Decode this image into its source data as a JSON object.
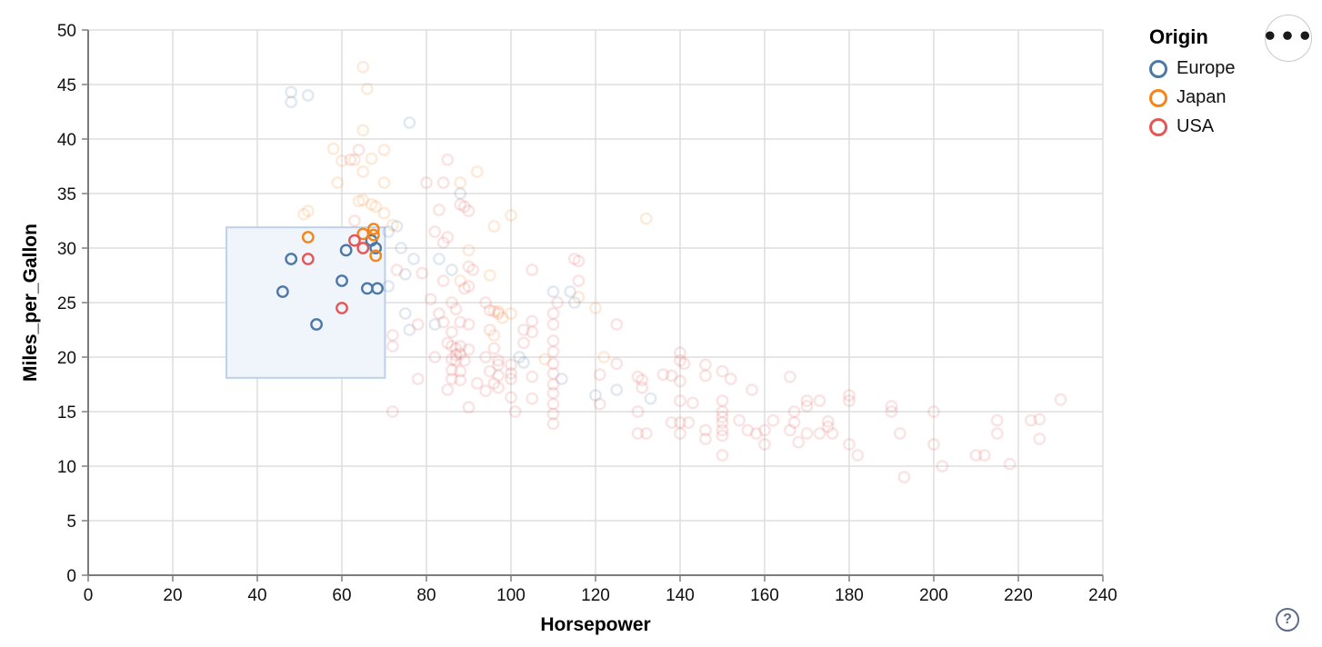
{
  "controls": {
    "menu_icon": "•••",
    "help_icon": "?"
  },
  "chart_data": {
    "type": "scatter",
    "title": "",
    "xlabel": "Horsepower",
    "ylabel": "Miles_per_Gallon",
    "x_domain": [
      0,
      240
    ],
    "y_domain": [
      0,
      50
    ],
    "x_ticks": [
      0,
      20,
      40,
      60,
      80,
      100,
      120,
      140,
      160,
      180,
      200,
      220,
      240
    ],
    "y_ticks": [
      0,
      5,
      10,
      15,
      20,
      25,
      30,
      35,
      40,
      45,
      50
    ],
    "grid": true,
    "legend_position": "top-right",
    "legend": {
      "title": "Origin",
      "entries": [
        {
          "label": "Europe",
          "color": "#4c78a8"
        },
        {
          "label": "Japan",
          "color": "#f58518"
        },
        {
          "label": "USA",
          "color": "#e45756"
        }
      ]
    },
    "brush": {
      "x": [
        32.7,
        70.2
      ],
      "y": [
        18.1,
        31.9
      ],
      "fill": "#f0f5fc",
      "stroke": "#bcd0ec"
    },
    "unselected_opacity": 0.17,
    "series": [
      {
        "name": "Europe",
        "color": "#4c78a8",
        "points": [
          [
            46,
            26
          ],
          [
            48,
            29
          ],
          [
            54,
            23
          ],
          [
            60,
            27
          ],
          [
            61,
            29.8
          ],
          [
            67,
            30.7
          ],
          [
            68,
            30
          ],
          [
            66,
            26.3
          ],
          [
            68.4,
            26.3
          ],
          [
            48,
            44.3
          ],
          [
            52,
            44
          ],
          [
            48,
            43.4
          ],
          [
            76,
            41.5
          ],
          [
            88,
            35
          ],
          [
            83,
            29
          ],
          [
            86,
            28
          ],
          [
            71,
            31.5
          ],
          [
            73,
            32
          ],
          [
            74,
            30
          ],
          [
            77,
            29
          ],
          [
            75,
            27.6
          ],
          [
            71,
            26.5
          ],
          [
            75,
            24
          ],
          [
            76,
            22.5
          ],
          [
            82,
            23
          ],
          [
            102,
            20
          ],
          [
            103,
            19.5
          ],
          [
            110,
            26
          ],
          [
            112,
            18
          ],
          [
            114,
            26
          ],
          [
            115,
            25
          ],
          [
            120,
            16.5
          ],
          [
            125,
            17
          ],
          [
            133,
            16.2
          ]
        ]
      },
      {
        "name": "Japan",
        "color": "#f58518",
        "points": [
          [
            52,
            31
          ],
          [
            65,
            31.3
          ],
          [
            67.5,
            31.75
          ],
          [
            67.5,
            31.2
          ],
          [
            68,
            29.3
          ],
          [
            65,
            46.6
          ],
          [
            66,
            44.6
          ],
          [
            65,
            40.8
          ],
          [
            58,
            39.1
          ],
          [
            59,
            36
          ],
          [
            60,
            38
          ],
          [
            63,
            38.1
          ],
          [
            67,
            38.2
          ],
          [
            70,
            39
          ],
          [
            65,
            37
          ],
          [
            70,
            36
          ],
          [
            92,
            37
          ],
          [
            88,
            36
          ],
          [
            100,
            33
          ],
          [
            96,
            32
          ],
          [
            90,
            29.8
          ],
          [
            132,
            32.7
          ],
          [
            52,
            33.4
          ],
          [
            51,
            33.1
          ],
          [
            64,
            34.3
          ],
          [
            65,
            34.4
          ],
          [
            67,
            34
          ],
          [
            68,
            33.8
          ],
          [
            70,
            33.2
          ],
          [
            72,
            32.1
          ],
          [
            96,
            24.2
          ],
          [
            97,
            24.2
          ],
          [
            98,
            23.6
          ],
          [
            96,
            22
          ],
          [
            88,
            27
          ],
          [
            95,
            27.5
          ],
          [
            100,
            24
          ],
          [
            108,
            19.8
          ],
          [
            116,
            25.5
          ],
          [
            120,
            24.5
          ],
          [
            122,
            20
          ]
        ]
      },
      {
        "name": "USA",
        "color": "#e45756",
        "points": [
          [
            52,
            29
          ],
          [
            60,
            24.5
          ],
          [
            63,
            30.7
          ],
          [
            65,
            30
          ],
          [
            64,
            39
          ],
          [
            62,
            38.1
          ],
          [
            85,
            38.1
          ],
          [
            84,
            36
          ],
          [
            80,
            36
          ],
          [
            83,
            33.5
          ],
          [
            88,
            34
          ],
          [
            89,
            33.8
          ],
          [
            90,
            33.4
          ],
          [
            63,
            32.5
          ],
          [
            82,
            31.5
          ],
          [
            85,
            31
          ],
          [
            84,
            30.5
          ],
          [
            73,
            28
          ],
          [
            79,
            27.7
          ],
          [
            90,
            28.3
          ],
          [
            91,
            28
          ],
          [
            84,
            27
          ],
          [
            81,
            25.3
          ],
          [
            86,
            25
          ],
          [
            87,
            24.4
          ],
          [
            89,
            26.3
          ],
          [
            90,
            26.5
          ],
          [
            88,
            23.2
          ],
          [
            90,
            23
          ],
          [
            83,
            24
          ],
          [
            84,
            23.2
          ],
          [
            78,
            23
          ],
          [
            86,
            22.3
          ],
          [
            85,
            21.3
          ],
          [
            72,
            22
          ],
          [
            72,
            21
          ],
          [
            86,
            21
          ],
          [
            87,
            20.8
          ],
          [
            88,
            21
          ],
          [
            90,
            20.7
          ],
          [
            88,
            20.3
          ],
          [
            87,
            20.2
          ],
          [
            86,
            19.8
          ],
          [
            87,
            19.7
          ],
          [
            89,
            19.7
          ],
          [
            86,
            18.8
          ],
          [
            88,
            18.7
          ],
          [
            86,
            18
          ],
          [
            88,
            17.9
          ],
          [
            85,
            17
          ],
          [
            78,
            18
          ],
          [
            82,
            20
          ],
          [
            92,
            17.6
          ],
          [
            90,
            15.4
          ],
          [
            72,
            15
          ],
          [
            94,
            25
          ],
          [
            95,
            24.3
          ],
          [
            97,
            24
          ],
          [
            95,
            22.5
          ],
          [
            96,
            20.8
          ],
          [
            94,
            20
          ],
          [
            97,
            19.7
          ],
          [
            95,
            18.7
          ],
          [
            96,
            17.6
          ],
          [
            94,
            16.9
          ],
          [
            97,
            19.3
          ],
          [
            97,
            18.3
          ],
          [
            97,
            17.2
          ],
          [
            100,
            19.3
          ],
          [
            100,
            18.5
          ],
          [
            100,
            18
          ],
          [
            100,
            16.3
          ],
          [
            101,
            15
          ],
          [
            103,
            22.5
          ],
          [
            103,
            21.3
          ],
          [
            105,
            28
          ],
          [
            105,
            23.3
          ],
          [
            105,
            22.3
          ],
          [
            105,
            18.2
          ],
          [
            105,
            16.2
          ],
          [
            110,
            24
          ],
          [
            110,
            23
          ],
          [
            110,
            21.5
          ],
          [
            110,
            20.5
          ],
          [
            110,
            19.4
          ],
          [
            110,
            18.5
          ],
          [
            110,
            17.5
          ],
          [
            110,
            16.7
          ],
          [
            110,
            15.7
          ],
          [
            110,
            14.8
          ],
          [
            110,
            13.9
          ],
          [
            111,
            25
          ],
          [
            115,
            29
          ],
          [
            116,
            28.8
          ],
          [
            116,
            27
          ],
          [
            125,
            23
          ],
          [
            125,
            19.4
          ],
          [
            121,
            18.4
          ],
          [
            121,
            15.7
          ],
          [
            130,
            18.2
          ],
          [
            131,
            17.9
          ],
          [
            131,
            17.2
          ],
          [
            136,
            18.4
          ],
          [
            138,
            18.3
          ],
          [
            140,
            20.4
          ],
          [
            140,
            19.7
          ],
          [
            141,
            19.4
          ],
          [
            140,
            17.8
          ],
          [
            146,
            19.3
          ],
          [
            146,
            18.3
          ],
          [
            130,
            15
          ],
          [
            130,
            13
          ],
          [
            132,
            13
          ],
          [
            138,
            14
          ],
          [
            140,
            14
          ],
          [
            142,
            14
          ],
          [
            140,
            16
          ],
          [
            143,
            15.8
          ],
          [
            140,
            13
          ],
          [
            146,
            13.3
          ],
          [
            146,
            12.5
          ],
          [
            150,
            18.7
          ],
          [
            152,
            18
          ],
          [
            150,
            16
          ],
          [
            150,
            15
          ],
          [
            150,
            14.5
          ],
          [
            150,
            14
          ],
          [
            150,
            13.3
          ],
          [
            150,
            12.8
          ],
          [
            150,
            11
          ],
          [
            154,
            14.2
          ],
          [
            156,
            13.3
          ],
          [
            158,
            13
          ],
          [
            157,
            17
          ],
          [
            160,
            13.3
          ],
          [
            162,
            14.2
          ],
          [
            160,
            12
          ],
          [
            167,
            15
          ],
          [
            167,
            14
          ],
          [
            166,
            13.3
          ],
          [
            168,
            12.2
          ],
          [
            166,
            18.2
          ],
          [
            170,
            16
          ],
          [
            170,
            15.5
          ],
          [
            170,
            13
          ],
          [
            173,
            16
          ],
          [
            175,
            14.1
          ],
          [
            175,
            13.6
          ],
          [
            176,
            13
          ],
          [
            173,
            13
          ],
          [
            180,
            16.5
          ],
          [
            180,
            16
          ],
          [
            180,
            12
          ],
          [
            182,
            11
          ],
          [
            190,
            15.5
          ],
          [
            190,
            15
          ],
          [
            192,
            13
          ],
          [
            200,
            15
          ],
          [
            200,
            12
          ],
          [
            202,
            10
          ],
          [
            193,
            9
          ],
          [
            210,
            11
          ],
          [
            212,
            11
          ],
          [
            215,
            14.2
          ],
          [
            215,
            13
          ],
          [
            218,
            10.2
          ],
          [
            223,
            14.2
          ],
          [
            225,
            14.3
          ],
          [
            225,
            12.5
          ],
          [
            230,
            16.1
          ]
        ]
      }
    ]
  }
}
